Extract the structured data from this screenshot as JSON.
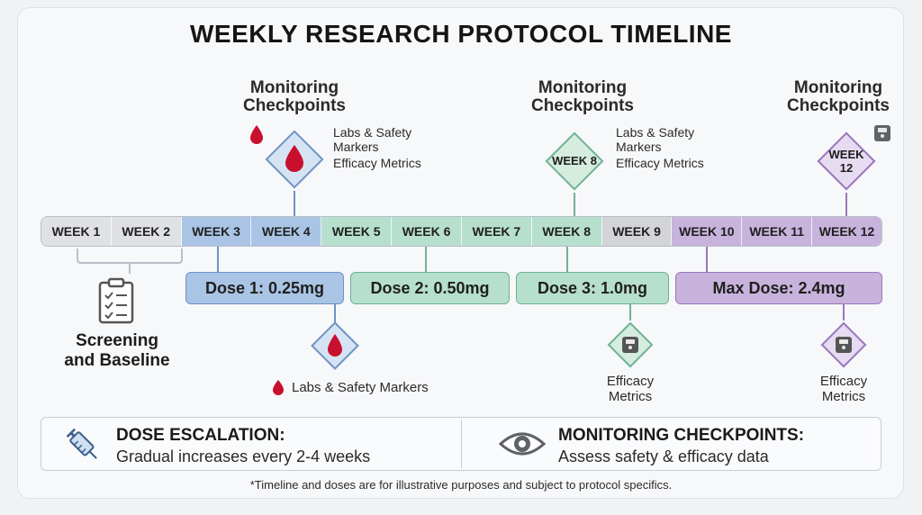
{
  "title": "WEEKLY RESEARCH PROTOCOL TIMELINE",
  "weeks": [
    "WEEK 1",
    "WEEK 2",
    "WEEK 3",
    "WEEK 4",
    "WEEK 5",
    "WEEK 6",
    "WEEK 7",
    "WEEK 8",
    "WEEK 9",
    "WEEK 10",
    "WEEK 11",
    "WEEK 12"
  ],
  "week_colors": [
    "#dfe1e5",
    "#dfe1e5",
    "#a9c4e4",
    "#a9c4e4",
    "#b7dfce",
    "#b7dfce",
    "#b7dfce",
    "#b7dfce",
    "#d2d4d8",
    "#c8b3dc",
    "#c8b3dc",
    "#c8b3dc"
  ],
  "monitoring": [
    {
      "title_line1": "Monitoring",
      "title_line2": "Checkpoints",
      "labels": [
        "Labs & Safety",
        "Markers",
        "Efficacy Metrics"
      ]
    },
    {
      "title_line1": "Monitoring",
      "title_line2": "Checkpoints",
      "diamond_label": "WEEK 8",
      "labels": [
        "Labs & Safety",
        "Markers",
        "Efficacy Metrics"
      ]
    },
    {
      "title_line1": "Monitoring",
      "title_line2": "Checkpoints",
      "diamond_label_line1": "WEEK",
      "diamond_label_line2": "12"
    }
  ],
  "doses": [
    {
      "label": "Dose 1: 0.25mg",
      "fill": "#a9c4e4",
      "border": "#6e93c4"
    },
    {
      "label": "Dose 2: 0.50mg",
      "fill": "#b7dfce",
      "border": "#6fb295"
    },
    {
      "label": "Dose 3: 1.0mg",
      "fill": "#b7dfce",
      "border": "#6fb295"
    },
    {
      "label": "Max Dose: 2.4mg",
      "fill": "#c8b3dc",
      "border": "#9a76bd"
    }
  ],
  "screening": {
    "line1": "Screening",
    "line2": "and Baseline"
  },
  "below": {
    "labs_label": "Labs & Safety Markers",
    "efficacy_line1": "Efficacy",
    "efficacy_line2": "Metrics"
  },
  "legend": {
    "left_title": "DOSE ESCALATION:",
    "left_text": "Gradual increases every 2-4 weeks",
    "right_title": "MONITORING CHECKPOINTS:",
    "right_text": "Assess safety & efficacy data"
  },
  "footnote": "*Timeline and doses are for illustrative purposes and subject to protocol specifics.",
  "colors": {
    "blue": "#6e93c4",
    "green": "#6fb295",
    "purple": "#9a76bd",
    "red": "#c8102e"
  }
}
